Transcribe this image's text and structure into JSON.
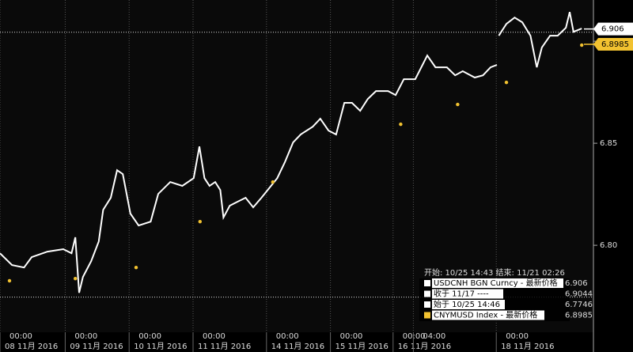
{
  "chart_data": {
    "type": "line",
    "xlim": [
      0,
      9.375
    ],
    "ylim": [
      6.7574,
      6.9202
    ],
    "yticks": [
      {
        "value": 6.8,
        "label": "6.80"
      },
      {
        "value": 6.85,
        "label": "6.85"
      },
      {
        "value": 6.9,
        "label": "6.90"
      }
    ],
    "xticks": [
      {
        "value": 0,
        "label": "00:00",
        "date": "08 11月 2016"
      },
      {
        "value": 1.03,
        "label": "00:00",
        "date": "09 11月 2016"
      },
      {
        "value": 2.04,
        "label": "00:00",
        "date": "10 11月 2016"
      },
      {
        "value": 3.05,
        "label": "00:00",
        "date": "11 11月 2016"
      },
      {
        "value": 4.21,
        "label": "00:00",
        "date": "14 11月 2016"
      },
      {
        "value": 5.22,
        "label": "00:00",
        "date": "15 11月 2016"
      },
      {
        "value": 6.21,
        "label": "00:00",
        "date": "16 11月 2016"
      },
      {
        "value": 6.53,
        "label": "04:00"
      },
      {
        "value": 7.84,
        "label": "00:00",
        "date": "18 11月 2016"
      }
    ],
    "legend_header": "开始: 10/25 14:43 结束: 11/21 02:26",
    "series": [
      {
        "name": "USDCNH BGN Curncy - 最新价格",
        "color": "#ffffff",
        "style": "line",
        "last": 6.906,
        "x": [
          0,
          0.19,
          0.38,
          0.5,
          0.75,
          1,
          1.13,
          1.19,
          1.25,
          1.31,
          1.44,
          1.56,
          1.63,
          1.75,
          1.85,
          1.94,
          2,
          2.06,
          2.19,
          2.38,
          2.5,
          2.69,
          2.88,
          3.06,
          3.15,
          3.23,
          3.31,
          3.4,
          3.48,
          3.53,
          3.63,
          3.75,
          3.88,
          4,
          4.13,
          4.25,
          4.38,
          4.5,
          4.63,
          4.75,
          4.94,
          5.06,
          5.19,
          5.31,
          5.44,
          5.56,
          5.69,
          5.81,
          5.94,
          6.13,
          6.25,
          6.38,
          6.56,
          6.75,
          6.88,
          7.06,
          7.19,
          7.31,
          7.5,
          7.63,
          7.75,
          7.85,
          7.86,
          7.88,
          8,
          8.13,
          8.25,
          8.38,
          8.48,
          8.56,
          8.69,
          8.81,
          8.94,
          9,
          9.06,
          9.19
        ],
        "values": [
          6.7961,
          6.7903,
          6.7891,
          6.7942,
          6.7969,
          6.7981,
          6.7961,
          6.8039,
          6.7767,
          6.7845,
          6.7922,
          6.8019,
          6.8174,
          6.8233,
          6.8368,
          6.8349,
          6.8252,
          6.8155,
          6.8097,
          6.8116,
          6.8252,
          6.831,
          6.8291,
          6.8329,
          6.8484,
          6.8329,
          6.8291,
          6.831,
          6.8271,
          6.8136,
          6.8194,
          6.8213,
          6.8233,
          6.8186,
          6.8233,
          6.8279,
          6.8329,
          6.8407,
          6.8504,
          6.8543,
          6.8581,
          6.862,
          6.8562,
          6.8543,
          6.8698,
          6.8698,
          6.8659,
          6.8717,
          6.8756,
          6.8756,
          6.8736,
          6.8814,
          6.8814,
          6.893,
          6.8872,
          6.8872,
          6.8833,
          6.8853,
          6.8822,
          6.8833,
          6.8872,
          6.8884,
          null,
          6.9027,
          6.9085,
          6.9116,
          6.9093,
          6.9027,
          6.8872,
          6.8969,
          6.9027,
          6.9027,
          6.9066,
          6.9143,
          6.9046,
          6.9062
        ]
      },
      {
        "name": "CNYMUSD Index - 最新价格",
        "color": "#f2c230",
        "style": "dots",
        "last": 6.8985,
        "x": [
          0.15,
          1.19,
          2.15,
          3.16,
          4.31,
          6.33,
          7.23,
          8,
          9.19
        ],
        "values": [
          6.7826,
          6.7837,
          6.7891,
          6.8116,
          6.831,
          6.8593,
          6.869,
          6.8798,
          6.8981
        ]
      }
    ],
    "reference_lines": [
      {
        "label": "收于 11/17 ----",
        "value": 6.9044
      },
      {
        "label": "始于 10/25 14:46",
        "value": 6.7746
      }
    ]
  }
}
